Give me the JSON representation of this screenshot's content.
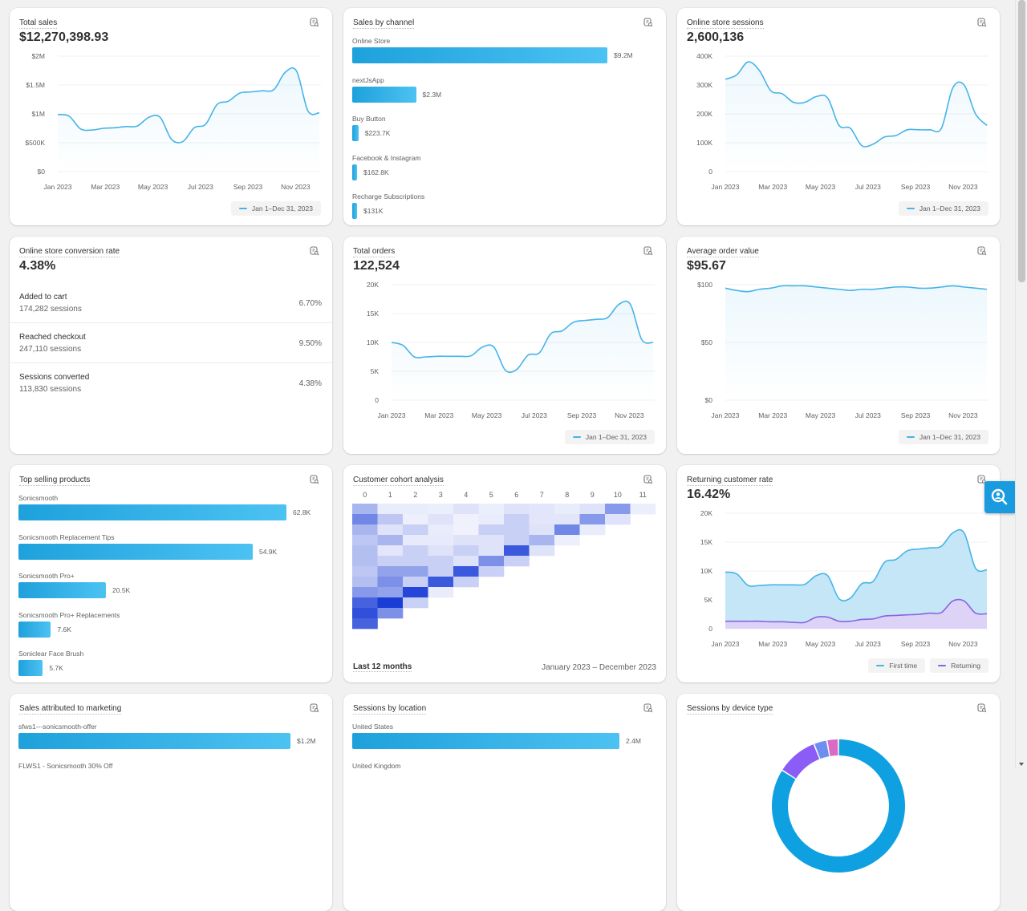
{
  "months_axis": [
    "Jan 2023",
    "Mar 2023",
    "May 2023",
    "Jul 2023",
    "Sep 2023",
    "Nov 2023"
  ],
  "date_range": "Jan 1–Dec 31, 2023",
  "colors": {
    "line": "#45b4e8",
    "returning": "#8a63e0",
    "bar": "#28a8e2",
    "cohort_dark": "#1a3dd6"
  },
  "total_sales": {
    "title": "Total sales",
    "value": "$12,270,398.93",
    "yticks": [
      "$2M",
      "$1.5M",
      "$1M",
      "$500K",
      "$0"
    ],
    "ymax": 2000000,
    "series": [
      990000,
      960000,
      740000,
      720000,
      750000,
      760000,
      780000,
      790000,
      940000,
      940000,
      560000,
      520000,
      760000,
      820000,
      1160000,
      1220000,
      1360000,
      1380000,
      1400000,
      1420000,
      1720000,
      1740000,
      1050000,
      1020000
    ]
  },
  "sales_by_channel": {
    "title": "Sales by channel",
    "max": 9200000,
    "items": [
      {
        "label": "Online Store",
        "value": 9200000,
        "display": "$9.2M"
      },
      {
        "label": "nextJsApp",
        "value": 2300000,
        "display": "$2.3M"
      },
      {
        "label": "Buy Button",
        "value": 223700,
        "display": "$223.7K"
      },
      {
        "label": "Facebook & Instagram",
        "value": 162800,
        "display": "$162.8K"
      },
      {
        "label": "Recharge Subscriptions",
        "value": 131000,
        "display": "$131K"
      }
    ]
  },
  "sessions": {
    "title": "Online store sessions",
    "value": "2,600,136",
    "yticks": [
      "400K",
      "300K",
      "200K",
      "100K",
      "0"
    ],
    "ymax": 400000,
    "series": [
      320000,
      335000,
      380000,
      350000,
      280000,
      270000,
      240000,
      240000,
      260000,
      255000,
      160000,
      150000,
      90000,
      95000,
      120000,
      125000,
      145000,
      145000,
      145000,
      150000,
      290000,
      300000,
      200000,
      160000
    ]
  },
  "conversion": {
    "title": "Online store conversion rate",
    "value": "4.38%",
    "rows": [
      {
        "label": "Added to cart",
        "sub": "174,282 sessions",
        "pct": "6.70%"
      },
      {
        "label": "Reached checkout",
        "sub": "247,110 sessions",
        "pct": "9.50%"
      },
      {
        "label": "Sessions converted",
        "sub": "113,830 sessions",
        "pct": "4.38%"
      }
    ]
  },
  "orders": {
    "title": "Total orders",
    "value": "122,524",
    "yticks": [
      "20K",
      "15K",
      "10K",
      "5K",
      "0"
    ],
    "ymax": 20000,
    "series": [
      10000,
      9500,
      7500,
      7500,
      7600,
      7600,
      7600,
      7700,
      9200,
      9200,
      5200,
      5300,
      7800,
      8200,
      11500,
      12000,
      13500,
      13800,
      14000,
      14300,
      16600,
      16600,
      10500,
      10000
    ]
  },
  "aov": {
    "title": "Average order value",
    "value": "$95.67",
    "yticks": [
      "$100",
      "$50",
      "$0"
    ],
    "ymax": 100,
    "series": [
      97,
      95,
      94,
      96,
      97,
      99,
      99,
      99,
      98,
      97,
      96,
      95,
      96,
      96,
      97,
      98,
      98,
      97,
      97,
      98,
      99,
      98,
      97,
      96
    ]
  },
  "top_products": {
    "title": "Top selling products",
    "max": 62800,
    "items": [
      {
        "label": "Sonicsmooth",
        "value": 62800,
        "display": "62.8K"
      },
      {
        "label": "Sonicsmooth Replacement Tips",
        "value": 54900,
        "display": "54.9K"
      },
      {
        "label": "Sonicsmooth Pro+",
        "value": 20500,
        "display": "20.5K"
      },
      {
        "label": "Sonicsmooth Pro+ Replacements",
        "value": 7600,
        "display": "7.6K"
      },
      {
        "label": "Soniclear Face Brush",
        "value": 5700,
        "display": "5.7K"
      }
    ]
  },
  "cohort": {
    "title": "Customer cohort analysis",
    "columns": [
      "0",
      "1",
      "2",
      "3",
      "4",
      "5",
      "6",
      "7",
      "8",
      "9",
      "10",
      "11"
    ],
    "period": "Last 12 months",
    "range": "January 2023 – December 2023",
    "intensity": [
      [
        0.35,
        0.05,
        0.05,
        0.04,
        0.1,
        0.04,
        0.1,
        0.08,
        0.05,
        0.1,
        0.5,
        0.04
      ],
      [
        0.6,
        0.25,
        0.03,
        0.1,
        0.02,
        0.05,
        0.2,
        0.08,
        0.08,
        0.5,
        0.1
      ],
      [
        0.35,
        0.1,
        0.2,
        0.05,
        0.02,
        0.2,
        0.2,
        0.1,
        0.6,
        0.05
      ],
      [
        0.25,
        0.35,
        0.06,
        0.06,
        0.1,
        0.1,
        0.2,
        0.35,
        0.03
      ],
      [
        0.3,
        0.08,
        0.2,
        0.1,
        0.2,
        0.1,
        0.85,
        0.1
      ],
      [
        0.3,
        0.2,
        0.2,
        0.2,
        0.1,
        0.55,
        0.2
      ],
      [
        0.25,
        0.45,
        0.45,
        0.2,
        0.85,
        0.2
      ],
      [
        0.3,
        0.55,
        0.2,
        0.85,
        0.2
      ],
      [
        0.5,
        0.45,
        0.95,
        0.05
      ],
      [
        0.8,
        1.0,
        0.2
      ],
      [
        0.9,
        0.55
      ],
      [
        0.8
      ]
    ]
  },
  "returning": {
    "title": "Returning customer rate",
    "value": "16.42%",
    "yticks": [
      "20K",
      "15K",
      "10K",
      "5K",
      "0"
    ],
    "ymax": 20000,
    "legend": [
      "First time",
      "Returning"
    ],
    "first_time": [
      9800,
      9500,
      7500,
      7500,
      7600,
      7600,
      7600,
      7700,
      9200,
      9200,
      5200,
      5300,
      7800,
      8200,
      11500,
      12000,
      13500,
      13800,
      14000,
      14300,
      16600,
      16600,
      10500,
      10200
    ],
    "returning_series": [
      1300,
      1300,
      1300,
      1300,
      1200,
      1200,
      1100,
      1100,
      2000,
      2000,
      1300,
      1300,
      1600,
      1700,
      2200,
      2300,
      2400,
      2500,
      2700,
      2800,
      4800,
      4800,
      2700,
      2600
    ]
  },
  "marketing": {
    "title": "Sales attributed to marketing",
    "max": 1200000,
    "items": [
      {
        "label": "sfws1---sonicsmooth-offer",
        "value": 1200000,
        "display": "$1.2M"
      },
      {
        "label": "FLWS1 - Sonicsmooth 30% Off",
        "value": 0,
        "display": ""
      }
    ]
  },
  "location": {
    "title": "Sessions by location",
    "max": 2400000,
    "items": [
      {
        "label": "United States",
        "value": 2400000,
        "display": "2.4M"
      },
      {
        "label": "United Kingdom",
        "value": 0,
        "display": ""
      }
    ]
  },
  "device": {
    "title": "Sessions by device type",
    "slices": [
      {
        "pct": 84,
        "color": "#0ea0e0"
      },
      {
        "pct": 10,
        "color": "#8b5cf6"
      },
      {
        "pct": 3.2,
        "color": "#6d8ff0"
      },
      {
        "pct": 2.8,
        "color": "#d96bc6"
      }
    ]
  }
}
